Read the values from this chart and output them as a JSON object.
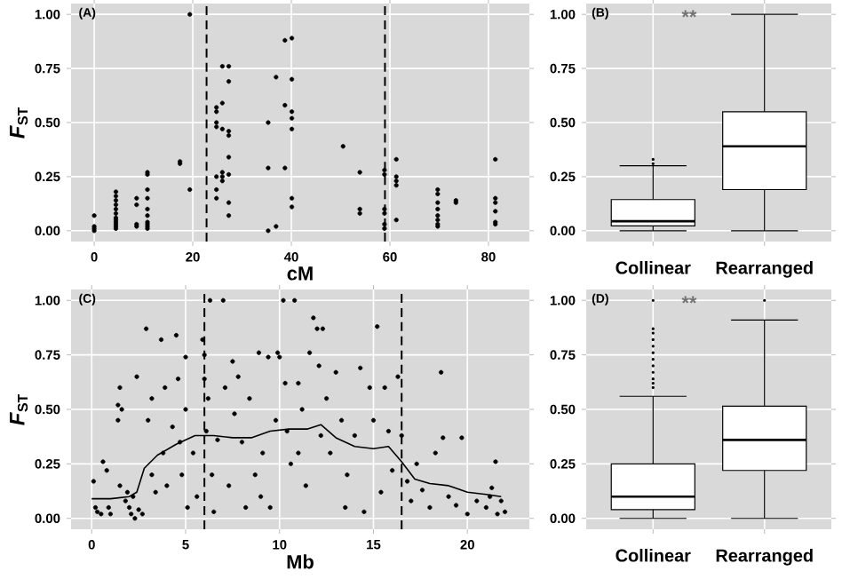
{
  "chart_data": [
    {
      "type": "scatter",
      "xlabel": "cM",
      "ylabel": "*F*$_{ST}$",
      "annotations": [
        "(A)"
      ],
      "marker": "circle",
      "grid": true,
      "xlim": [
        -4.7,
        88.3
      ],
      "xticks": [
        0,
        20,
        40,
        60,
        80
      ],
      "ylim": [
        -0.05,
        1.05
      ],
      "yticks": [
        {
          "value": 0,
          "label": "0.00"
        },
        {
          "value": 0.25,
          "label": "0.25"
        },
        {
          "value": 0.5,
          "label": "0.50"
        },
        {
          "value": 0.75,
          "label": "0.75"
        },
        {
          "value": 1,
          "label": "1.00"
        }
      ],
      "ref_lines": [
        {
          "axis": "x",
          "value": 22.8,
          "line_style": "dashed"
        },
        {
          "axis": "x",
          "value": 59,
          "line_style": "dashed"
        }
      ],
      "series": [
        {
          "color": "#000000",
          "x": [
            0,
            0,
            0,
            0,
            4.4,
            4.4,
            4.4,
            4.4,
            4.4,
            4.4,
            4.4,
            4.4,
            4.4,
            4.4,
            4.4,
            4.4,
            8.6,
            8.6,
            8.6,
            8.6,
            10.8,
            10.8,
            10.8,
            10.8,
            10.8,
            10.8,
            10.8,
            10.8,
            10.8,
            10.8,
            17.4,
            17.4,
            19.4,
            19.4,
            24.8,
            24.8,
            24.8,
            24.8,
            24.8,
            24.8,
            24.8,
            26,
            26,
            26,
            26,
            26,
            26,
            27.3,
            27.3,
            27.3,
            27.3,
            27.3,
            27.3,
            27.3,
            27.3,
            35.3,
            35.3,
            35.3,
            36.9,
            36.9,
            38.7,
            38.7,
            38.7,
            40.1,
            40.1,
            40.1,
            40.1,
            40.1,
            40.1,
            40.1,
            50.5,
            53.9,
            53.9,
            53.9,
            58.9,
            58.9,
            58.9,
            58.9,
            58.9,
            58.9,
            61.3,
            61.3,
            61.3,
            61.3,
            61.3,
            69.7,
            69.7,
            69.7,
            69.7,
            69.7,
            69.7,
            69.7,
            69.7,
            73.4,
            73.4,
            81.4,
            81.4,
            81.4,
            81.4,
            81.4,
            81.4
          ],
          "values": [
            0.07,
            0.02,
            0.01,
            0,
            0.18,
            0.16,
            0.14,
            0.12,
            0.1,
            0.08,
            0.06,
            0.05,
            0.04,
            0.03,
            0.02,
            0.01,
            0.15,
            0.12,
            0.03,
            0.02,
            0.27,
            0.26,
            0.19,
            0.15,
            0.1,
            0.07,
            0.04,
            0.03,
            0.02,
            0.01,
            0.31,
            0.32,
            1,
            0.19,
            0.57,
            0.55,
            0.5,
            0.48,
            0.25,
            0.19,
            0.15,
            0.76,
            0.59,
            0.47,
            0.27,
            0.25,
            0.23,
            0.76,
            0.69,
            0.46,
            0.44,
            0.34,
            0.26,
            0.13,
            0.07,
            0.5,
            0.29,
            0,
            0.71,
            0.02,
            0.88,
            0.58,
            0.29,
            0.89,
            0.7,
            0.55,
            0.52,
            0.47,
            0.15,
            0.11,
            0.39,
            0.27,
            0.1,
            0.08,
            0.28,
            0.26,
            0.1,
            0.08,
            0.03,
            0.01,
            0.33,
            0.25,
            0.23,
            0.21,
            0.05,
            0.19,
            0.17,
            0.13,
            0.1,
            0.07,
            0.05,
            0.03,
            0.02,
            0.14,
            0.13,
            0.33,
            0.15,
            0.13,
            0.09,
            0.04,
            0.03
          ]
        }
      ]
    },
    {
      "type": "box",
      "categories": [
        "Collinear",
        "Rearranged"
      ],
      "annotations": [
        "(B)",
        "**"
      ],
      "grid": true,
      "ylim": [
        -0.05,
        1.05
      ],
      "yticks": [
        {
          "value": 0,
          "label": "0.00"
        },
        {
          "value": 0.25,
          "label": "0.25"
        },
        {
          "value": 0.5,
          "label": "0.50"
        },
        {
          "value": 0.75,
          "label": "0.75"
        },
        {
          "value": 1,
          "label": "1.00"
        }
      ],
      "series": [
        {
          "color": "#ffffff",
          "boxes": [
            {
              "low": 0,
              "q1": 0.022,
              "median": 0.044,
              "q3": 0.144,
              "high": 0.3,
              "outliers": [
                0.31,
                0.33
              ]
            },
            {
              "low": 0,
              "q1": 0.19,
              "median": 0.39,
              "q3": 0.55,
              "high": 1
            }
          ]
        }
      ]
    },
    {
      "type": "scatter",
      "xlabel": "Mb",
      "ylabel": "*F*$_{ST}$",
      "annotations": [
        "(C)"
      ],
      "grid": true,
      "xlim": [
        -1.1,
        23.3
      ],
      "xticks": [
        0,
        5,
        10,
        15,
        20
      ],
      "ylim": [
        -0.05,
        1.05
      ],
      "yticks": [
        {
          "value": 0,
          "label": "0.00"
        },
        {
          "value": 0.25,
          "label": "0.25"
        },
        {
          "value": 0.5,
          "label": "0.50"
        },
        {
          "value": 0.75,
          "label": "0.75"
        },
        {
          "value": 1,
          "label": "1.00"
        }
      ],
      "ref_lines": [
        {
          "axis": "x",
          "value": 6,
          "line_style": "dashed"
        },
        {
          "axis": "x",
          "value": 16.5,
          "line_style": "dashed"
        }
      ],
      "series": [
        {
          "color": "#000000",
          "marker": "circle",
          "x": [
            0.1,
            0.2,
            0.3,
            0.5,
            0.6,
            0.8,
            0.9,
            1,
            1.4,
            1.5,
            1.4,
            1.6,
            1.5,
            1.8,
            2,
            2.1,
            2.2,
            2.4,
            2.5,
            2.7,
            2.9,
            3,
            3.2,
            3.2,
            3.4,
            3.7,
            3.8,
            3.9,
            4,
            4.3,
            4.5,
            4.6,
            4.7,
            4.8,
            5,
            5,
            5.1,
            5.4,
            5.6,
            5.9,
            6,
            6,
            6.1,
            6.2,
            6.3,
            6.4,
            6.5,
            6.7,
            7,
            7.1,
            7.3,
            7.5,
            7.6,
            7.8,
            8,
            8.2,
            8.4,
            8.7,
            8.9,
            9.1,
            9.4,
            9.5,
            9.8,
            9.9,
            10,
            10.2,
            10.3,
            10.4,
            10.6,
            10.8,
            11,
            11.2,
            11.4,
            11.6,
            11.8,
            12,
            12.1,
            12.3,
            12.5,
            12.7,
            13,
            13.3,
            13.6,
            14,
            14.3,
            14.5,
            14.8,
            15,
            15.2,
            15.4,
            15.6,
            15.8,
            16,
            16.3,
            16.5,
            16.8,
            17,
            17.3,
            17.6,
            18,
            18.3,
            18.6,
            18.7,
            19,
            19.4,
            19.7,
            20,
            20.5,
            21,
            21.3,
            21.5,
            21.6,
            21.8,
            22,
            21.2,
            2.3,
            1.9,
            12.2,
            11,
            9,
            13.5
          ],
          "values": [
            0.17,
            0.05,
            0.03,
            0.02,
            0.26,
            0.22,
            0.05,
            0.02,
            0.52,
            0.6,
            0.45,
            0.5,
            0.15,
            0.08,
            0.05,
            0.02,
            0.1,
            0.65,
            0.04,
            0.02,
            0.87,
            0.45,
            0.55,
            0.2,
            0.12,
            0.82,
            0.3,
            0.6,
            0.15,
            0.42,
            0.84,
            0.64,
            0.35,
            0.2,
            0.74,
            0.5,
            0.05,
            0.3,
            0.1,
            0.82,
            0.75,
            0.64,
            0.4,
            0.55,
            1,
            0.2,
            0.03,
            0.36,
            1,
            0.6,
            0.15,
            0.72,
            0.48,
            0.65,
            0.35,
            0.05,
            0.55,
            0.2,
            0.76,
            0.3,
            0.74,
            0.05,
            0.45,
            0.76,
            0.74,
            1,
            0.62,
            0.4,
            0.25,
            1,
            0.62,
            0.5,
            0.15,
            0.76,
            0.92,
            0.87,
            0.7,
            0.87,
            0.55,
            0.3,
            0.67,
            0.45,
            0.2,
            0.38,
            0.69,
            0.03,
            0.6,
            0.45,
            0.88,
            0.12,
            0.6,
            0.4,
            0.22,
            0.65,
            0.38,
            0.17,
            0.08,
            0.25,
            0.13,
            0.05,
            0.3,
            0.67,
            0.37,
            0.1,
            0.06,
            0.37,
            0.02,
            0.08,
            0.05,
            0.14,
            0.26,
            0.02,
            0.08,
            0.03,
            0.1,
            0,
            0.12,
            0.38,
            0.3,
            0.1,
            0.05
          ]
        },
        {
          "type": "line",
          "color": "#000000",
          "x": [
            0,
            1,
            2,
            2.4,
            2.8,
            3.5,
            4.5,
            5.5,
            6.5,
            7.5,
            8.5,
            9.5,
            10.5,
            11.5,
            12.2,
            13,
            14,
            15,
            15.8,
            16.5,
            17.2,
            18,
            19,
            20,
            21,
            21.8
          ],
          "values": [
            0.09,
            0.09,
            0.1,
            0.12,
            0.23,
            0.29,
            0.34,
            0.38,
            0.38,
            0.37,
            0.37,
            0.4,
            0.41,
            0.41,
            0.43,
            0.37,
            0.33,
            0.32,
            0.33,
            0.26,
            0.18,
            0.16,
            0.15,
            0.12,
            0.11,
            0.1
          ]
        }
      ]
    },
    {
      "type": "box",
      "categories": [
        "Collinear",
        "Rearranged"
      ],
      "annotations": [
        "(D)",
        "**"
      ],
      "grid": true,
      "ylim": [
        -0.05,
        1.05
      ],
      "yticks": [
        {
          "value": 0,
          "label": "0.00"
        },
        {
          "value": 0.25,
          "label": "0.25"
        },
        {
          "value": 0.5,
          "label": "0.50"
        },
        {
          "value": 0.75,
          "label": "0.75"
        },
        {
          "value": 1,
          "label": "1.00"
        }
      ],
      "series": [
        {
          "color": "#ffffff",
          "boxes": [
            {
              "low": 0,
              "q1": 0.04,
              "median": 0.1,
              "q3": 0.25,
              "high": 0.56,
              "outliers": [
                0.6,
                0.62,
                0.64,
                0.67,
                0.7,
                0.73,
                0.76,
                0.79,
                0.82,
                0.85,
                0.87,
                1
              ]
            },
            {
              "low": 0,
              "q1": 0.22,
              "median": 0.36,
              "q3": 0.515,
              "high": 0.91,
              "outliers": [
                1
              ]
            }
          ]
        }
      ]
    }
  ]
}
